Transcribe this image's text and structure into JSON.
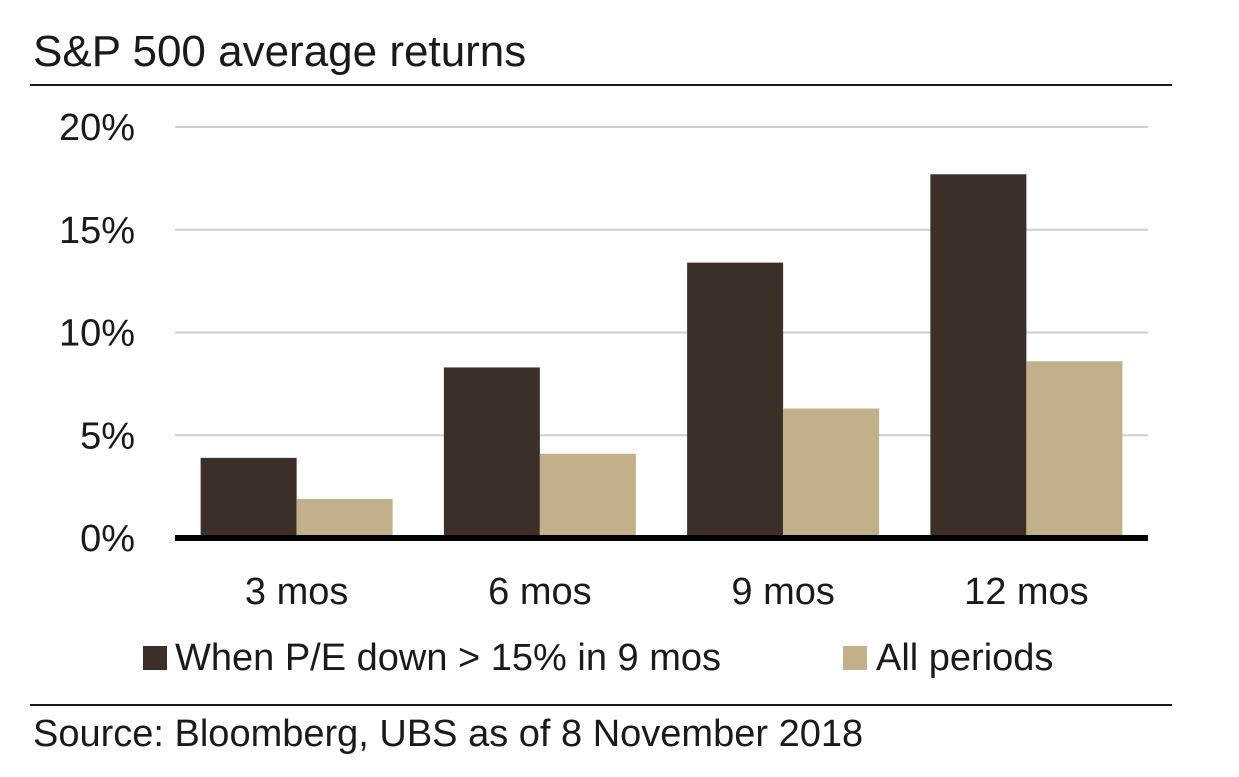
{
  "chart_data": {
    "type": "bar",
    "title": "S&P 500 average returns",
    "categories": [
      "3 mos",
      "6 mos",
      "9 mos",
      "12 mos"
    ],
    "series": [
      {
        "name": "When P/E down > 15% in 9 mos",
        "values": [
          3.9,
          8.3,
          13.4,
          17.7
        ],
        "color": "#3c2f27"
      },
      {
        "name": "All periods",
        "values": [
          1.9,
          4.1,
          6.3,
          8.6
        ],
        "color": "#c2b08a"
      }
    ],
    "y_ticks": [
      "0%",
      "5%",
      "10%",
      "15%",
      "20%"
    ],
    "y_tick_values": [
      0,
      5,
      10,
      15,
      20
    ],
    "ylim": [
      0,
      20
    ],
    "grid": true,
    "legend_position": "bottom",
    "source": "Source: Bloomberg, UBS as of 8 November 2018"
  }
}
